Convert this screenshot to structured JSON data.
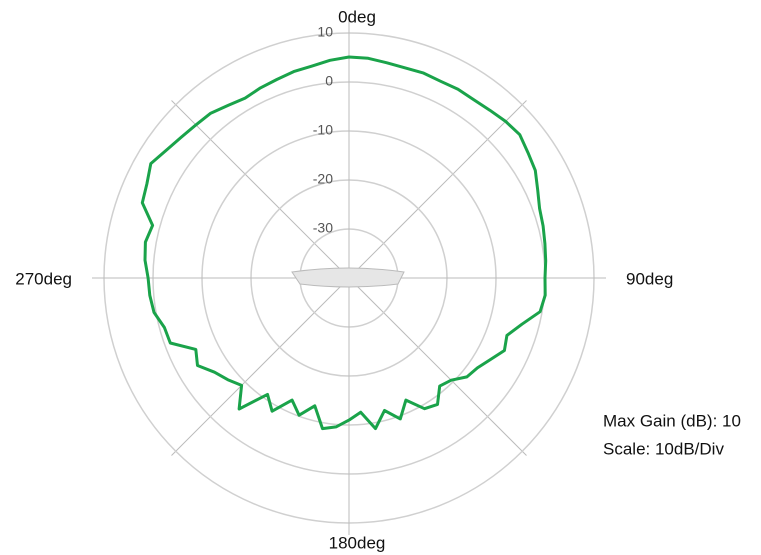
{
  "chart_data": {
    "type": "polar",
    "rlim": [
      -40,
      10
    ],
    "rticks": [
      10,
      0,
      -10,
      -20,
      -30
    ],
    "thetaticks": [
      {
        "value": 0,
        "label": "0deg"
      },
      {
        "value": 90,
        "label": "90deg"
      },
      {
        "value": 180,
        "label": "180deg"
      },
      {
        "value": 270,
        "label": "270deg"
      }
    ],
    "grid": true,
    "series": [
      {
        "color": "#1aa34a",
        "theta": [
          0,
          5,
          10,
          15,
          20,
          25,
          30,
          35,
          40,
          45,
          50,
          55,
          60,
          65,
          70,
          75,
          80,
          85,
          90,
          95,
          100,
          105,
          110,
          115,
          120,
          125,
          130,
          135,
          140,
          145,
          150,
          155,
          160,
          165,
          170,
          175,
          180,
          185,
          190,
          195,
          200,
          205,
          210,
          215,
          220,
          225,
          230,
          235,
          240,
          245,
          250,
          255,
          260,
          265,
          270,
          275,
          280,
          285,
          290,
          295,
          300,
          305,
          310,
          315,
          320,
          325,
          330,
          335,
          340,
          345,
          350,
          355
        ],
        "values": [
          5.1,
          5.0,
          4.6,
          4.4,
          4.5,
          4.3,
          4.5,
          4.4,
          4.7,
          5.2,
          5.5,
          4.6,
          3.9,
          2.5,
          1.4,
          1.0,
          0.6,
          0.3,
          0,
          0.2,
          -0.4,
          -3.5,
          -5.7,
          -5.0,
          -6.7,
          -8.0,
          -8.6,
          -10.5,
          -11.2,
          -8.5,
          -9.2,
          -12.5,
          -9.4,
          -12.0,
          -8.8,
          -12.5,
          -11,
          -9.5,
          -8.8,
          -13,
          -10.2,
          -12.5,
          -8.6,
          -11,
          -5.1,
          -9,
          -7.7,
          -6.5,
          -4.3,
          -5.5,
          -1.2,
          -1.0,
          0.4,
          0.8,
          1.0,
          1.8,
          2.2,
          1.5,
          4.9,
          5.5,
          6.7,
          5.5,
          4.7,
          4.2,
          3.9,
          3.0,
          2.4,
          2.8,
          3.1,
          3.6,
          3.9,
          4.6
        ]
      }
    ],
    "annotations": [
      "Max Gain (dB): 10",
      "Scale: 10dB/Div"
    ]
  }
}
